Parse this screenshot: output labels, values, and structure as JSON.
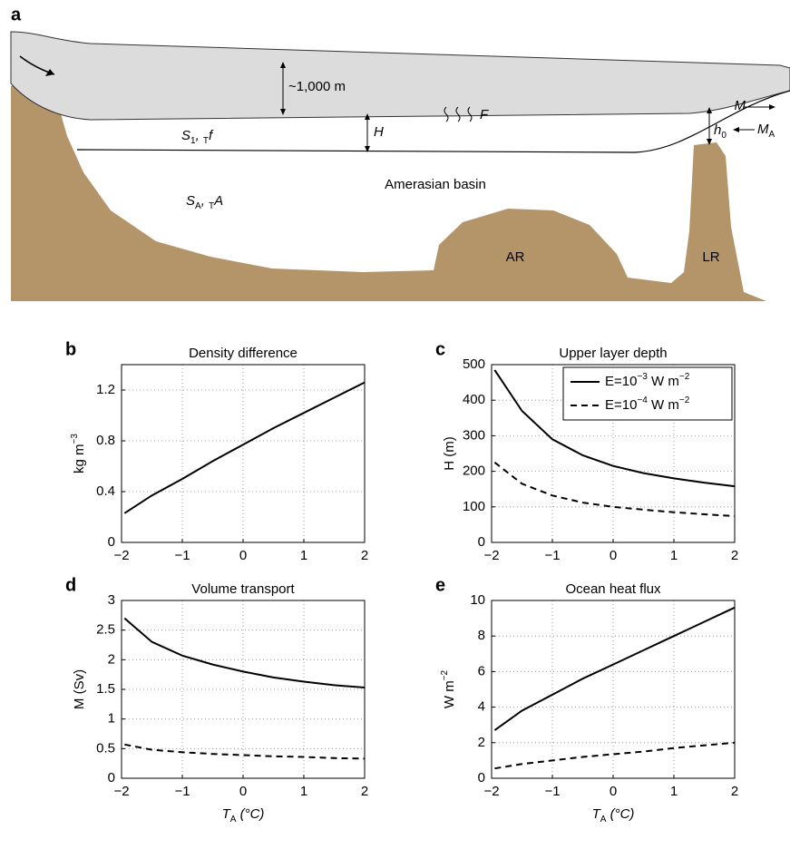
{
  "diagram": {
    "panel_label": "a",
    "ice_thickness": "~1,000 m",
    "upper_layer": [
      "S",
      "1",
      ", ",
      "T",
      "f"
    ],
    "layer_depth": "H",
    "flux": "F",
    "outflow": "M",
    "inflow": [
      "M",
      "A"
    ],
    "sill_depth": [
      "h",
      "0"
    ],
    "deep_layer": [
      "S",
      "A",
      ", ",
      "T",
      "A"
    ],
    "basin": "Amerasian basin",
    "ridge_1": "AR",
    "ridge_2": "LR"
  },
  "chart_data": [
    {
      "type": "line",
      "panel_label": "b",
      "title": "Density difference",
      "ylabel": [
        "kg m",
        "−3"
      ],
      "x": [
        -1.95,
        -1.5,
        -1,
        -0.5,
        0,
        0.5,
        1,
        1.5,
        2
      ],
      "series": [
        {
          "color": "#000000",
          "line_style": "solid",
          "values": [
            0.23,
            0.37,
            0.5,
            0.64,
            0.77,
            0.9,
            1.02,
            1.14,
            1.26
          ]
        }
      ],
      "xlim": [
        -2,
        2
      ],
      "ylim": [
        0,
        1.4
      ],
      "xticks": [
        {
          "value": -2,
          "label": "−2"
        },
        {
          "value": -1,
          "label": "−1"
        },
        0,
        1,
        2
      ],
      "yticks": [
        0,
        0.4,
        0.8,
        1.2
      ],
      "grid": true
    },
    {
      "type": "line",
      "panel_label": "c",
      "title": "Upper layer depth",
      "ylabel": "H (m)",
      "x": [
        -1.95,
        -1.5,
        -1,
        -0.5,
        0,
        0.5,
        1,
        1.5,
        2
      ],
      "series": [
        {
          "name": [
            "E=10",
            "−3",
            " W m",
            "−2"
          ],
          "color": "#000000",
          "line_style": "solid",
          "values": [
            485,
            370,
            290,
            245,
            215,
            195,
            180,
            168,
            158
          ]
        },
        {
          "name": [
            "E=10",
            "−4",
            " W m",
            "−2"
          ],
          "color": "#000000",
          "line_style": "dashed",
          "values": [
            225,
            165,
            132,
            112,
            100,
            92,
            85,
            79,
            74
          ]
        }
      ],
      "xlim": [
        -2,
        2
      ],
      "ylim": [
        0,
        500
      ],
      "xticks": [
        {
          "value": -2,
          "label": "−2"
        },
        {
          "value": -1,
          "label": "−1"
        },
        0,
        1,
        2
      ],
      "yticks": [
        0,
        100,
        200,
        300,
        400,
        500
      ],
      "grid": true,
      "legend": "upper right"
    },
    {
      "type": "line",
      "panel_label": "d",
      "title": "Volume transport",
      "ylabel": "M (Sv)",
      "xlabel": [
        "T",
        "A",
        " (°C)"
      ],
      "x": [
        -1.95,
        -1.5,
        -1,
        -0.5,
        0,
        0.5,
        1,
        1.5,
        2
      ],
      "series": [
        {
          "color": "#000000",
          "line_style": "solid",
          "values": [
            2.7,
            2.3,
            2.07,
            1.92,
            1.8,
            1.7,
            1.63,
            1.57,
            1.53
          ]
        },
        {
          "color": "#000000",
          "line_style": "dashed",
          "values": [
            0.57,
            0.48,
            0.44,
            0.41,
            0.39,
            0.37,
            0.36,
            0.34,
            0.33
          ]
        }
      ],
      "xlim": [
        -2,
        2
      ],
      "ylim": [
        0,
        3
      ],
      "xticks": [
        {
          "value": -2,
          "label": "−2"
        },
        {
          "value": -1,
          "label": "−1"
        },
        0,
        1,
        2
      ],
      "yticks": [
        0,
        0.5,
        1,
        1.5,
        2,
        2.5,
        3
      ],
      "grid": true
    },
    {
      "type": "line",
      "panel_label": "e",
      "title": "Ocean heat flux",
      "ylabel": [
        "W m",
        "−2"
      ],
      "xlabel": [
        "T",
        "A",
        " (°C)"
      ],
      "x": [
        -1.95,
        -1.5,
        -1,
        -0.5,
        0,
        0.5,
        1,
        1.5,
        2
      ],
      "series": [
        {
          "color": "#000000",
          "line_style": "solid",
          "values": [
            2.7,
            3.8,
            4.7,
            5.6,
            6.4,
            7.2,
            8.0,
            8.8,
            9.6
          ]
        },
        {
          "color": "#000000",
          "line_style": "dashed",
          "values": [
            0.55,
            0.8,
            1.0,
            1.2,
            1.35,
            1.5,
            1.7,
            1.85,
            2.0
          ]
        }
      ],
      "xlim": [
        -2,
        2
      ],
      "ylim": [
        0,
        10
      ],
      "xticks": [
        {
          "value": -2,
          "label": "−2"
        },
        {
          "value": -1,
          "label": "−1"
        },
        0,
        1,
        2
      ],
      "yticks": [
        0,
        2,
        4,
        6,
        8,
        10
      ],
      "grid": true
    }
  ]
}
